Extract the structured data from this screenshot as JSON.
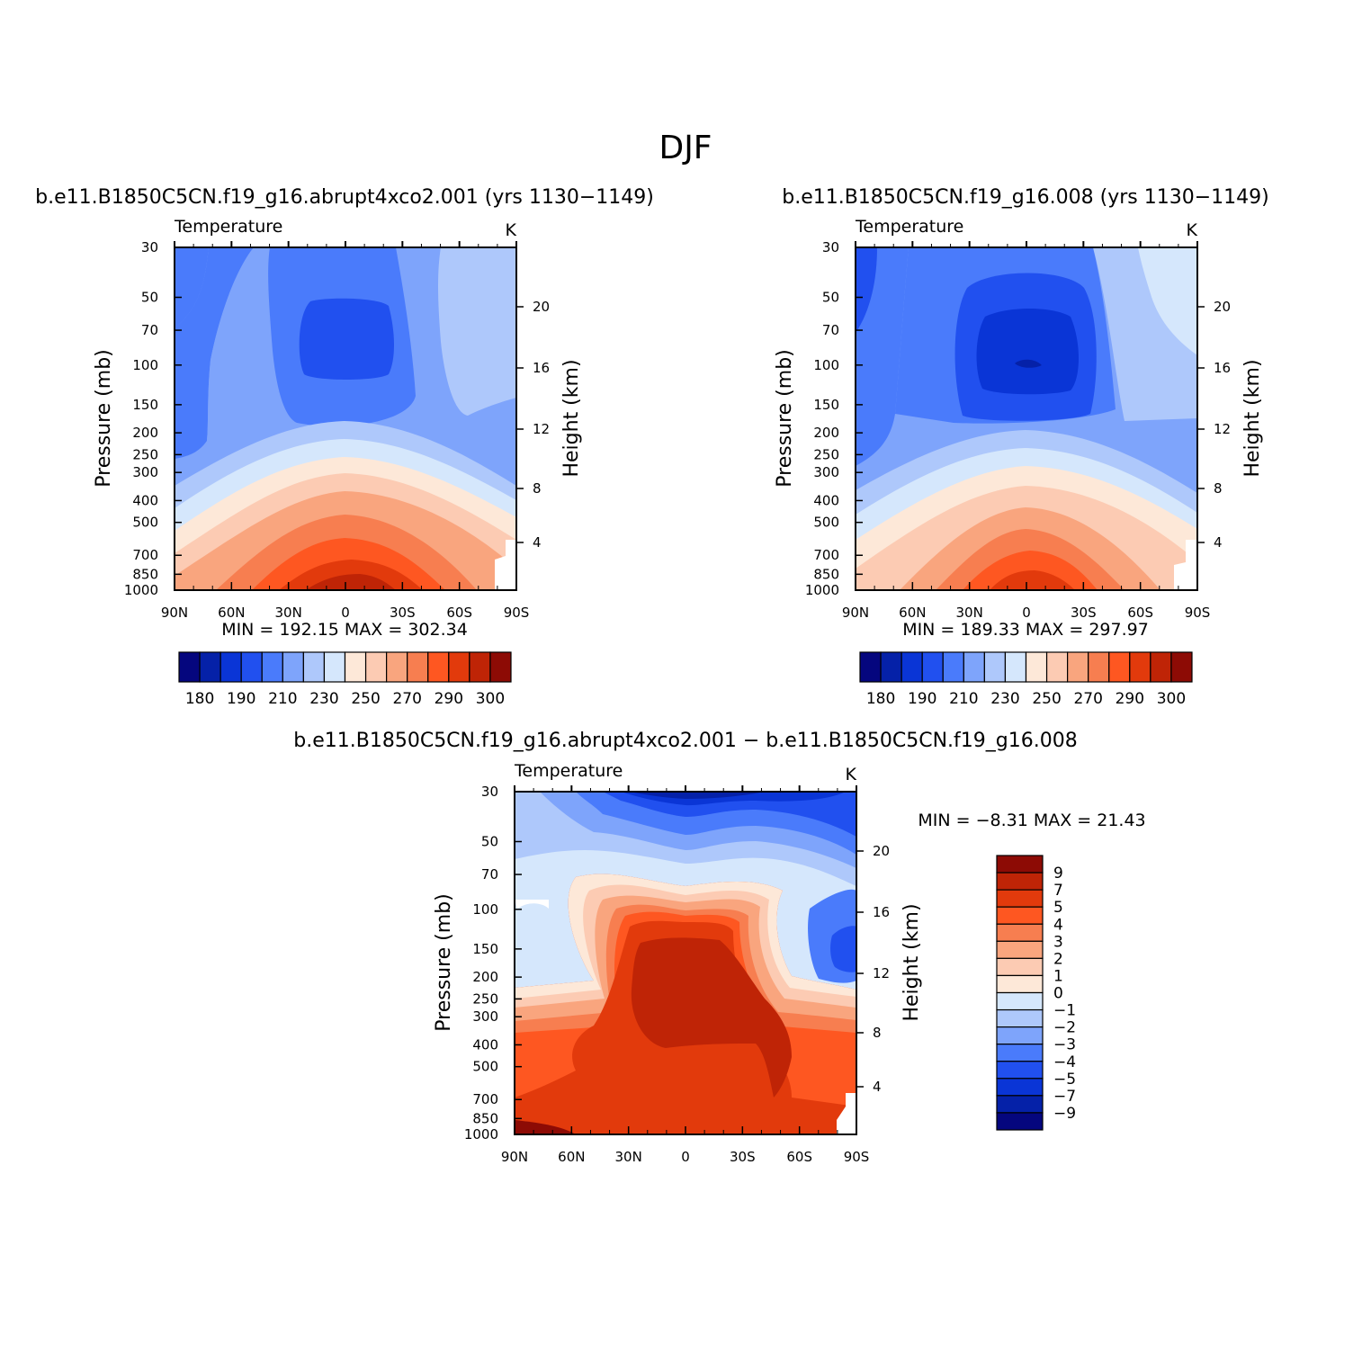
{
  "page_title": "DJF",
  "chart_data": [
    {
      "type": "heatmap",
      "title": "b.e11.B1850C5CN.f19_g16.abrupt4xco2.001 (yrs 1130−1149)",
      "left_title": "Temperature",
      "units": "K",
      "ylabel": "Pressure (mb)",
      "ylabel_right": "Height (km)",
      "x_ticks": [
        "90N",
        "60N",
        "30N",
        "0",
        "30S",
        "60S",
        "90S"
      ],
      "y_ticks": [
        30,
        50,
        70,
        100,
        150,
        200,
        250,
        300,
        400,
        500,
        700,
        850,
        1000
      ],
      "y_right_ticks": [
        20,
        16,
        12,
        8,
        4
      ],
      "ylim": [
        1000,
        30
      ],
      "stats_text": "MIN = 192.15 MAX = 302.34",
      "min": 192.15,
      "max": 302.34,
      "colorbar_labels": [
        "180",
        "190",
        "210",
        "230",
        "250",
        "270",
        "290",
        "300"
      ],
      "colorbar_levels": [
        180,
        185,
        190,
        200,
        210,
        220,
        230,
        240,
        250,
        260,
        270,
        280,
        290,
        295,
        300
      ],
      "colors": [
        "#05067e",
        "#0521a8",
        "#0a35d6",
        "#2150ef",
        "#4a7bfb",
        "#7ea4fb",
        "#aec8fb",
        "#d5e7fc",
        "#fde8d8",
        "#fccbb3",
        "#f9a57e",
        "#f77e50",
        "#fe5721",
        "#e23a0c",
        "#bf2406",
        "#8d0b05"
      ]
    },
    {
      "type": "heatmap",
      "title": "b.e11.B1850C5CN.f19_g16.008 (yrs 1130−1149)",
      "left_title": "Temperature",
      "units": "K",
      "ylabel": "Pressure (mb)",
      "ylabel_right": "Height (km)",
      "x_ticks": [
        "90N",
        "60N",
        "30N",
        "0",
        "30S",
        "60S",
        "90S"
      ],
      "y_ticks": [
        30,
        50,
        70,
        100,
        150,
        200,
        250,
        300,
        400,
        500,
        700,
        850,
        1000
      ],
      "y_right_ticks": [
        20,
        16,
        12,
        8,
        4
      ],
      "ylim": [
        1000,
        30
      ],
      "stats_text": "MIN = 189.33 MAX = 297.97",
      "min": 189.33,
      "max": 297.97,
      "colorbar_labels": [
        "180",
        "190",
        "210",
        "230",
        "250",
        "270",
        "290",
        "300"
      ],
      "colorbar_levels": [
        180,
        185,
        190,
        200,
        210,
        220,
        230,
        240,
        250,
        260,
        270,
        280,
        290,
        295,
        300
      ],
      "colors": [
        "#05067e",
        "#0521a8",
        "#0a35d6",
        "#2150ef",
        "#4a7bfb",
        "#7ea4fb",
        "#aec8fb",
        "#d5e7fc",
        "#fde8d8",
        "#fccbb3",
        "#f9a57e",
        "#f77e50",
        "#fe5721",
        "#e23a0c",
        "#bf2406",
        "#8d0b05"
      ]
    },
    {
      "type": "heatmap",
      "title": "b.e11.B1850C5CN.f19_g16.abrupt4xco2.001 − b.e11.B1850C5CN.f19_g16.008",
      "left_title": "Temperature",
      "units": "K",
      "ylabel": "Pressure (mb)",
      "ylabel_right": "Height (km)",
      "x_ticks": [
        "90N",
        "60N",
        "30N",
        "0",
        "30S",
        "60S",
        "90S"
      ],
      "y_ticks": [
        30,
        50,
        70,
        100,
        150,
        200,
        250,
        300,
        400,
        500,
        700,
        850,
        1000
      ],
      "y_right_ticks": [
        20,
        16,
        12,
        8,
        4
      ],
      "ylim": [
        1000,
        30
      ],
      "stats_text": "MIN = −8.31 MAX = 21.43",
      "min": -8.31,
      "max": 21.43,
      "colorbar_labels": [
        "9",
        "7",
        "5",
        "4",
        "3",
        "2",
        "1",
        "0",
        "−1",
        "−2",
        "−3",
        "−4",
        "−5",
        "−7",
        "−9"
      ],
      "colorbar_levels": [
        9,
        7,
        5,
        4,
        3,
        2,
        1,
        0,
        -1,
        -2,
        -3,
        -4,
        -5,
        -7,
        -9
      ],
      "colors": [
        "#8d0b05",
        "#bf2406",
        "#e23a0c",
        "#fe5721",
        "#f77e50",
        "#f9a57e",
        "#fccbb3",
        "#fde8d8",
        "#d5e7fc",
        "#aec8fb",
        "#7ea4fb",
        "#4a7bfb",
        "#2150ef",
        "#0a35d6",
        "#0521a8",
        "#05067e"
      ]
    }
  ]
}
